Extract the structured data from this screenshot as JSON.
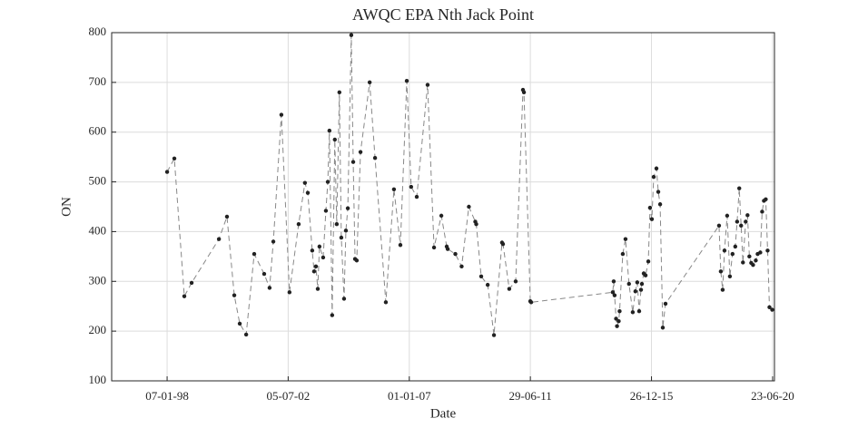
{
  "chart_data": {
    "type": "line",
    "title": "AWQC EPA Nth Jack Point",
    "x_label": "Date",
    "y_label": "ON",
    "x": [
      "1998-01-07",
      "1998-04-15",
      "1998-08-28",
      "1998-12-05",
      "1999-12-10",
      "2000-03-28",
      "2000-07-05",
      "2000-09-17",
      "2000-12-13",
      "2001-04-01",
      "2001-08-14",
      "2001-10-26",
      "2001-12-16",
      "2002-04-04",
      "2002-07-23",
      "2002-11-24",
      "2003-02-17",
      "2003-03-28",
      "2003-05-27",
      "2003-06-21",
      "2003-07-16",
      "2003-08-10",
      "2003-09-02",
      "2003-10-22",
      "2003-11-28",
      "2003-12-24",
      "2004-01-15",
      "2004-02-21",
      "2004-03-28",
      "2004-04-23",
      "2004-05-29",
      "2004-06-24",
      "2004-07-31",
      "2004-08-25",
      "2004-09-20",
      "2004-11-06",
      "2004-12-02",
      "2004-12-27",
      "2005-01-19",
      "2005-03-11",
      "2005-07-13",
      "2005-09-24",
      "2006-02-17",
      "2006-06-07",
      "2006-09-02",
      "2006-11-28",
      "2007-01-26",
      "2007-04-12",
      "2007-09-06",
      "2007-12-02",
      "2008-03-10",
      "2008-05-22",
      "2008-06-04",
      "2008-09-16",
      "2008-12-10",
      "2009-03-18",
      "2009-06-13",
      "2009-06-26",
      "2009-09-01",
      "2009-11-28",
      "2010-02-21",
      "2010-06-10",
      "2010-06-23",
      "2010-09-16",
      "2010-12-12",
      "2011-03-21",
      "2011-04-03",
      "2011-06-28",
      "2011-07-10",
      "2014-07-19",
      "2014-08-01",
      "2014-08-13",
      "2014-09-02",
      "2014-09-15",
      "2014-10-08",
      "2014-10-20",
      "2014-12-02",
      "2015-01-08",
      "2015-02-24",
      "2015-04-16",
      "2015-05-22",
      "2015-06-16",
      "2015-07-12",
      "2015-08-06",
      "2015-08-18",
      "2015-09-12",
      "2015-10-07",
      "2015-11-13",
      "2015-12-06",
      "2015-12-31",
      "2016-01-25",
      "2016-03-02",
      "2016-03-27",
      "2016-04-21",
      "2016-05-27",
      "2016-07-03",
      "2018-06-28",
      "2018-07-22",
      "2018-08-16",
      "2018-09-10",
      "2018-10-16",
      "2018-11-22",
      "2018-12-28",
      "2019-02-03",
      "2019-02-28",
      "2019-03-29",
      "2019-04-23",
      "2019-05-18",
      "2019-06-24",
      "2019-07-19",
      "2019-08-13",
      "2019-09-07",
      "2019-10-02",
      "2019-11-08",
      "2019-12-03",
      "2020-01-08",
      "2020-02-02",
      "2020-02-26",
      "2020-03-22",
      "2020-04-16",
      "2020-05-11",
      "2020-06-17"
    ],
    "series": [
      {
        "name": "ON",
        "color": "#222222",
        "values": [
          520,
          547,
          270,
          297,
          385,
          430,
          272,
          215,
          193,
          355,
          315,
          287,
          380,
          635,
          278,
          415,
          498,
          478,
          362,
          320,
          330,
          285,
          370,
          348,
          442,
          500,
          603,
          232,
          585,
          415,
          680,
          388,
          265,
          402,
          447,
          795,
          540,
          345,
          342,
          560,
          700,
          548,
          258,
          485,
          373,
          703,
          490,
          470,
          695,
          368,
          432,
          370,
          365,
          355,
          330,
          450,
          420,
          415,
          310,
          293,
          192,
          378,
          375,
          285,
          300,
          685,
          680,
          260,
          258,
          278,
          300,
          272,
          225,
          210,
          220,
          240,
          355,
          385,
          295,
          238,
          280,
          298,
          240,
          283,
          295,
          316,
          312,
          340,
          448,
          425,
          510,
          527,
          480,
          455,
          207,
          255,
          412,
          320,
          283,
          362,
          432,
          310,
          355,
          370,
          420,
          487,
          412,
          338,
          420,
          433,
          350,
          337,
          333,
          342,
          355,
          358,
          440,
          462,
          465,
          362,
          248,
          243
        ]
      }
    ],
    "xlim": [
      "1995-12-18",
      "2020-07-18"
    ],
    "xticks": [
      {
        "value": "1998-01-07",
        "label": "07-01-98"
      },
      {
        "value": "2002-07-05",
        "label": "05-07-02"
      },
      {
        "value": "2007-01-01",
        "label": "01-01-07"
      },
      {
        "value": "2011-06-29",
        "label": "29-06-11"
      },
      {
        "value": "2015-12-26",
        "label": "26-12-15"
      },
      {
        "value": "2020-06-23",
        "label": "23-06-20"
      }
    ],
    "ylim": [
      100,
      800
    ],
    "yticks": [
      100,
      200,
      300,
      400,
      500,
      600,
      700,
      800
    ],
    "grid": true
  }
}
